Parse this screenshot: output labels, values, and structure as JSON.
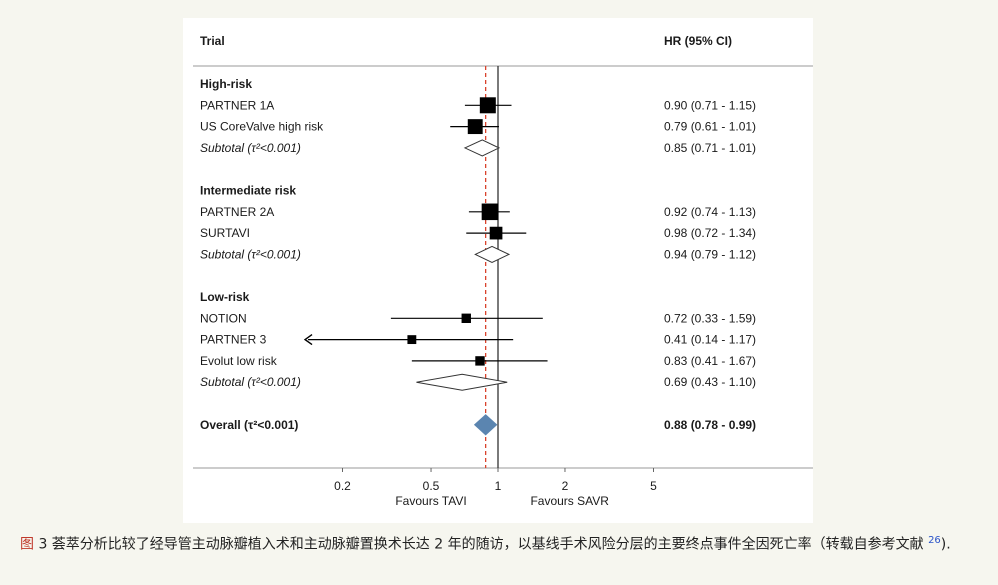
{
  "header": {
    "trial_label": "Trial",
    "hr_label": "HR (95% CI)"
  },
  "chart_data": {
    "type": "forest",
    "scale": "log",
    "xlim": [
      0.1,
      8
    ],
    "x_ticks": [
      {
        "value": 0.2,
        "label": "0.2"
      },
      {
        "value": 0.5,
        "label": "0.5"
      },
      {
        "value": 1,
        "label": "1"
      },
      {
        "value": 2,
        "label": "2"
      },
      {
        "value": 5,
        "label": "5"
      }
    ],
    "x_left_label": "Favours TAVI",
    "x_right_label": "Favours SAVR",
    "reference_line": 1,
    "overall_line": 0.88,
    "rows": [
      {
        "kind": "group",
        "label": "High-risk"
      },
      {
        "kind": "study",
        "label": "PARTNER 1A",
        "hr": 0.9,
        "lo": 0.71,
        "hi": 1.15,
        "weight": 1.0,
        "ci_text": "0.90 (0.71 - 1.15)"
      },
      {
        "kind": "study",
        "label": "US CoreValve high risk",
        "hr": 0.79,
        "lo": 0.61,
        "hi": 1.01,
        "weight": 0.9,
        "ci_text": "0.79 (0.61 - 1.01)"
      },
      {
        "kind": "subtotal",
        "label": "Subtotal",
        "label_suffix": "(τ²<0.001)",
        "hr": 0.85,
        "lo": 0.71,
        "hi": 1.01,
        "ci_text": "0.85 (0.71 - 1.01)"
      },
      {
        "kind": "spacer"
      },
      {
        "kind": "group",
        "label": "Intermediate risk"
      },
      {
        "kind": "study",
        "label": "PARTNER 2A",
        "hr": 0.92,
        "lo": 0.74,
        "hi": 1.13,
        "weight": 1.05,
        "ci_text": "0.92 (0.74 - 1.13)"
      },
      {
        "kind": "study",
        "label": "SURTAVI",
        "hr": 0.98,
        "lo": 0.72,
        "hi": 1.34,
        "weight": 0.7,
        "ci_text": "0.98 (0.72 - 1.34)"
      },
      {
        "kind": "subtotal",
        "label": "Subtotal",
        "label_suffix": "(τ²<0.001)",
        "hr": 0.94,
        "lo": 0.79,
        "hi": 1.12,
        "ci_text": "0.94 (0.79 - 1.12)"
      },
      {
        "kind": "spacer"
      },
      {
        "kind": "group",
        "label": "Low-risk"
      },
      {
        "kind": "study",
        "label": "NOTION",
        "hr": 0.72,
        "lo": 0.33,
        "hi": 1.59,
        "weight": 0.4,
        "ci_text": "0.72 (0.33 - 1.59)"
      },
      {
        "kind": "study",
        "label": "PARTNER 3",
        "hr": 0.41,
        "lo": 0.14,
        "hi": 1.17,
        "weight": 0.35,
        "ci_text": "0.41 (0.14 - 1.17)",
        "arrow_left": true
      },
      {
        "kind": "study",
        "label": "Evolut low risk",
        "hr": 0.83,
        "lo": 0.41,
        "hi": 1.67,
        "weight": 0.4,
        "ci_text": "0.83 (0.41 - 1.67)"
      },
      {
        "kind": "subtotal",
        "label": "Subtotal",
        "label_suffix": "(τ²<0.001)",
        "hr": 0.69,
        "lo": 0.43,
        "hi": 1.1,
        "ci_text": "0.69 (0.43 - 1.10)"
      },
      {
        "kind": "spacer"
      },
      {
        "kind": "overall",
        "label": "Overall",
        "label_suffix": "(τ²<0.001)",
        "hr": 0.88,
        "lo": 0.78,
        "hi": 0.99,
        "ci_text": "0.88 (0.78 - 0.99)"
      }
    ]
  },
  "colors": {
    "reference_line": "#333333",
    "overall_line": "#d9432c",
    "overall_diamond": "#5b85b0",
    "marker": "#000000"
  },
  "caption": {
    "fig_tag": "图",
    "text": " 3 荟萃分析比较了经导管主动脉瓣植入术和主动脉瓣置换术长达 2 年的随访，以基线手术风险分层的主要终点事件全因死亡率（转载自参考文献 ",
    "ref": "26",
    "end": ")."
  }
}
